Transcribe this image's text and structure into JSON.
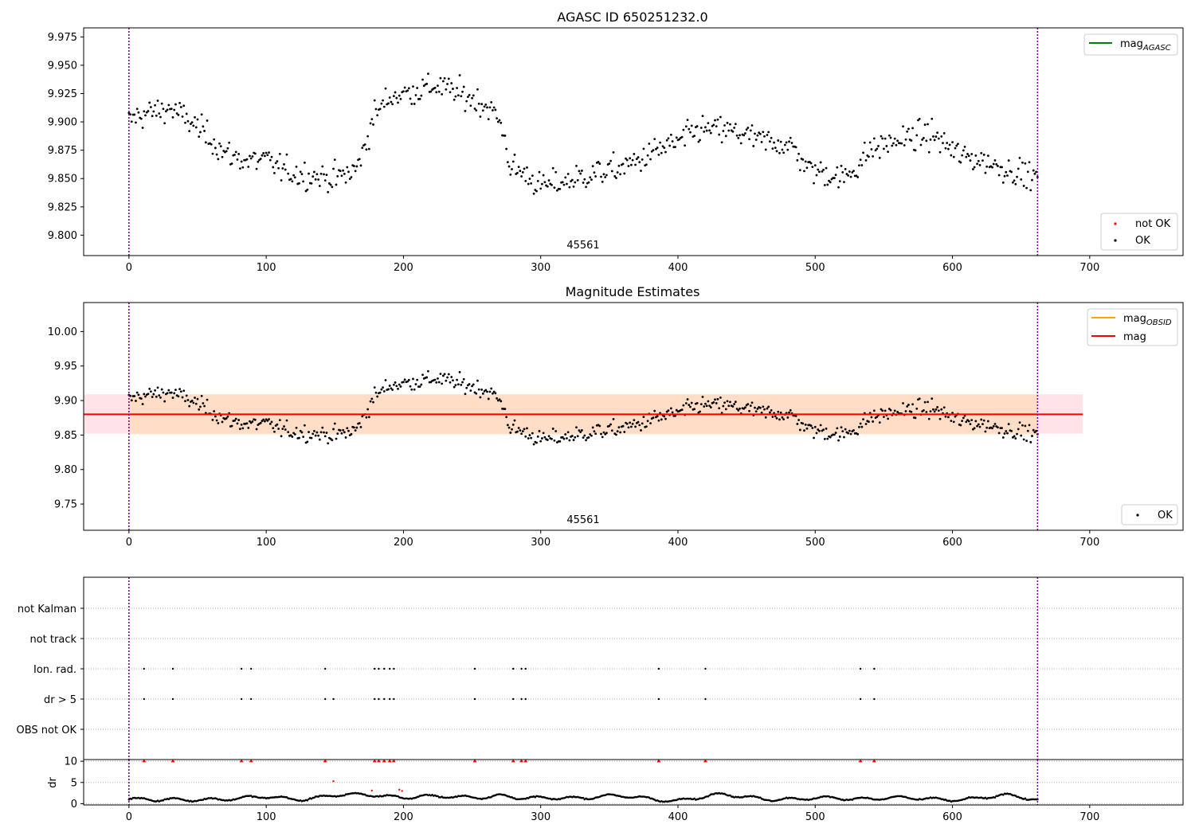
{
  "figure": {
    "title_top": "AGASC ID 650251232.0",
    "title_middle": "Magnitude Estimates",
    "obsid_label": "45561"
  },
  "colors": {
    "ok_points": "#000000",
    "not_ok_points": "#ff0000",
    "mag_agasc_line": "#008000",
    "mag_obsid_line": "#ffa500",
    "mag_line": "#ff0000",
    "obs_boundary": "#8000a0",
    "band_fill_outer": "#ffc0cb",
    "band_fill_inner": "#ffdab9"
  },
  "legends": {
    "top_upper": [
      {
        "label": "mag",
        "subscript": "AGASC",
        "icon": "green-line-icon"
      }
    ],
    "top_lower": [
      {
        "label": "not OK",
        "icon": "red-dot-icon"
      },
      {
        "label": "OK",
        "icon": "black-dot-icon"
      }
    ],
    "middle_upper": [
      {
        "label": "mag",
        "subscript": "OBSID",
        "icon": "orange-line-icon"
      },
      {
        "label": "mag",
        "subscript": "",
        "icon": "red-line-icon"
      }
    ],
    "middle_lower": [
      {
        "label": "OK",
        "icon": "black-dot-icon"
      }
    ]
  },
  "flags_panel": {
    "categories": [
      "not Kalman",
      "not track",
      "Ion. rad.",
      "dr > 5",
      "OBS not OK"
    ],
    "ion_rad_x": [
      11,
      32,
      82,
      89,
      143,
      179,
      182,
      186,
      190,
      193,
      252,
      280,
      286,
      289,
      386,
      420,
      533,
      543
    ],
    "dr_gt_5_x": [
      11,
      32,
      82,
      89,
      143,
      149,
      179,
      182,
      186,
      190,
      193,
      252,
      280,
      286,
      289,
      386,
      420,
      533,
      543
    ]
  },
  "dr_panel": {
    "ylabel": "dr",
    "ytick_labels": [
      "0",
      "5",
      "10"
    ],
    "clipped_x": [
      11,
      32,
      82,
      89,
      143,
      179,
      182,
      186,
      190,
      193,
      252,
      280,
      286,
      289,
      386,
      420,
      533,
      543
    ],
    "extra_not_ok_points": [
      {
        "x": 149,
        "y": 5.3
      },
      {
        "x": 177,
        "y": 3.1
      },
      {
        "x": 197,
        "y": 3.3
      },
      {
        "x": 199,
        "y": 3.0
      }
    ]
  },
  "chart_data": [
    {
      "type": "scatter",
      "title": "AGASC ID 650251232.0",
      "xlim": [
        -33,
        768
      ],
      "ylim": [
        9.782,
        9.983
      ],
      "xticks": [
        0,
        100,
        200,
        300,
        400,
        500,
        600,
        700
      ],
      "yticks": [
        9.8,
        9.825,
        9.85,
        9.875,
        9.9,
        9.925,
        9.95,
        9.975
      ],
      "series": [
        {
          "name": "OK",
          "anchors": [
            [
              0,
              9.9
            ],
            [
              5,
              9.905
            ],
            [
              15,
              9.908
            ],
            [
              30,
              9.912
            ],
            [
              45,
              9.9
            ],
            [
              60,
              9.885
            ],
            [
              70,
              9.872
            ],
            [
              85,
              9.866
            ],
            [
              100,
              9.866
            ],
            [
              115,
              9.856
            ],
            [
              130,
              9.853
            ],
            [
              150,
              9.85
            ],
            [
              165,
              9.857
            ],
            [
              172,
              9.878
            ],
            [
              178,
              9.905
            ],
            [
              190,
              9.922
            ],
            [
              210,
              9.928
            ],
            [
              225,
              9.932
            ],
            [
              240,
              9.925
            ],
            [
              255,
              9.918
            ],
            [
              265,
              9.91
            ],
            [
              272,
              9.895
            ],
            [
              278,
              9.86
            ],
            [
              290,
              9.853
            ],
            [
              300,
              9.843
            ],
            [
              320,
              9.848
            ],
            [
              340,
              9.855
            ],
            [
              355,
              9.858
            ],
            [
              370,
              9.865
            ],
            [
              385,
              9.875
            ],
            [
              400,
              9.882
            ],
            [
              415,
              9.893
            ],
            [
              430,
              9.893
            ],
            [
              445,
              9.89
            ],
            [
              460,
              9.883
            ],
            [
              475,
              9.882
            ],
            [
              485,
              9.876
            ],
            [
              495,
              9.858
            ],
            [
              505,
              9.856
            ],
            [
              520,
              9.85
            ],
            [
              530,
              9.86
            ],
            [
              540,
              9.875
            ],
            [
              555,
              9.882
            ],
            [
              570,
              9.886
            ],
            [
              585,
              9.889
            ],
            [
              597,
              9.878
            ],
            [
              605,
              9.87
            ],
            [
              620,
              9.867
            ],
            [
              635,
              9.86
            ],
            [
              650,
              9.855
            ],
            [
              662,
              9.85
            ]
          ],
          "noise": 0.012
        },
        {
          "name": "not OK",
          "values": []
        }
      ],
      "obs_boundaries": [
        0,
        662
      ],
      "ylabel": "",
      "xlabel": ""
    },
    {
      "type": "scatter",
      "title": "Magnitude Estimates",
      "xlim": [
        -33,
        768
      ],
      "ylim": [
        9.712,
        10.042
      ],
      "xticks": [
        0,
        100,
        200,
        300,
        400,
        500,
        600,
        700
      ],
      "yticks": [
        9.75,
        9.8,
        9.85,
        9.9,
        9.95,
        10.0
      ],
      "mag": 9.88,
      "mag_obsid": 9.88,
      "band_obsid": [
        9.851,
        9.909
      ],
      "band_obsid_x": [
        0,
        662
      ],
      "band_mag": [
        9.852,
        9.909
      ],
      "band_mag_x": [
        -33,
        695
      ],
      "series": [
        {
          "name": "OK"
        }
      ],
      "obs_boundaries": [
        0,
        662
      ],
      "ylabel": "",
      "xlabel": ""
    },
    {
      "type": "scatter",
      "title": "",
      "xlim": [
        -33,
        768
      ],
      "ylim": [
        -0.3,
        10.4
      ],
      "xticks": [
        0,
        100,
        200,
        300,
        400,
        500,
        600,
        700
      ],
      "yticks": [
        0,
        5,
        10
      ],
      "series": [
        {
          "name": "dr",
          "anchors": [
            [
              0,
              1.0
            ],
            [
              20,
              0.7
            ],
            [
              50,
              1.2
            ],
            [
              80,
              1.0
            ],
            [
              100,
              1.6
            ],
            [
              130,
              1.2
            ],
            [
              150,
              1.8
            ],
            [
              180,
              2.2
            ],
            [
              200,
              1.6
            ],
            [
              240,
              1.5
            ],
            [
              270,
              2.0
            ],
            [
              290,
              1.0
            ],
            [
              320,
              1.5
            ],
            [
              350,
              1.8
            ],
            [
              380,
              1.1
            ],
            [
              400,
              0.9
            ],
            [
              430,
              2.0
            ],
            [
              460,
              1.4
            ],
            [
              490,
              1.0
            ],
            [
              520,
              1.3
            ],
            [
              550,
              1.4
            ],
            [
              580,
              1.0
            ],
            [
              610,
              1.2
            ],
            [
              640,
              1.8
            ],
            [
              662,
              1.0
            ]
          ]
        }
      ],
      "obs_boundaries": [
        0,
        662
      ],
      "ylabel": "dr",
      "xlabel": ""
    }
  ]
}
